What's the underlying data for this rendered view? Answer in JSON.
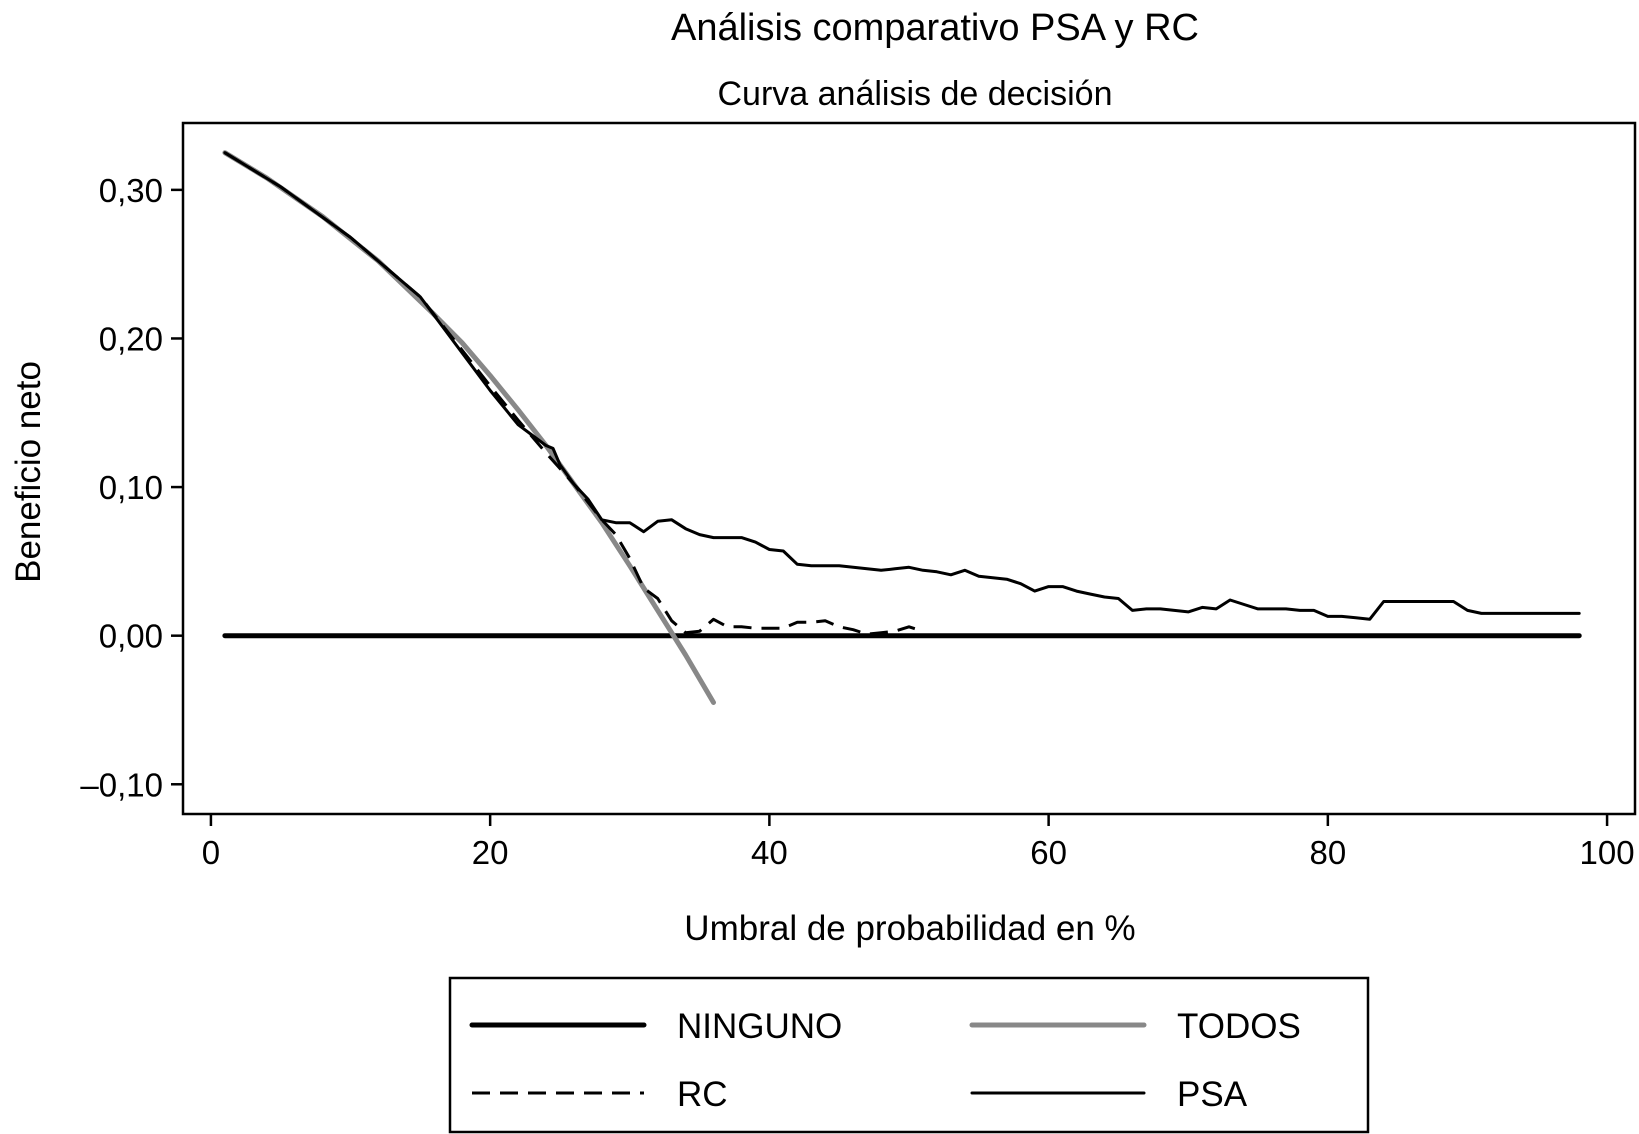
{
  "chart_data": {
    "type": "line",
    "title": "Análisis comparativo PSA y RC",
    "subtitle": "Curva análisis de decisión",
    "xlabel": "Umbral de probabilidad en %",
    "ylabel": "Beneficio neto",
    "xlim": [
      -2,
      102
    ],
    "ylim": [
      -0.12,
      0.345
    ],
    "x_ticks": [
      0,
      20,
      40,
      60,
      80,
      100
    ],
    "x_tick_labels": [
      "0",
      "20",
      "40",
      "60",
      "80",
      "100"
    ],
    "y_ticks": [
      -0.1,
      0.0,
      0.1,
      0.2,
      0.3
    ],
    "y_tick_labels": [
      "–0,10",
      "0,00",
      "0,10",
      "0,20",
      "0,30"
    ],
    "grid": false,
    "legend_position": "bottom",
    "series": [
      {
        "name": "NINGUNO",
        "style": "solid",
        "color": "#000000",
        "width": "thick",
        "points": [
          [
            1,
            0.0
          ],
          [
            98,
            0.0
          ]
        ]
      },
      {
        "name": "TODOS",
        "style": "solid",
        "color": "#888888",
        "width": "thick",
        "points": [
          [
            1,
            0.325
          ],
          [
            4,
            0.308
          ],
          [
            8,
            0.282
          ],
          [
            12,
            0.252
          ],
          [
            16,
            0.216
          ],
          [
            18,
            0.197
          ],
          [
            20,
            0.175
          ],
          [
            22,
            0.152
          ],
          [
            24,
            0.128
          ],
          [
            26,
            0.102
          ],
          [
            28,
            0.076
          ],
          [
            30,
            0.047
          ],
          [
            32,
            0.017
          ],
          [
            34,
            -0.013
          ],
          [
            36,
            -0.045
          ]
        ]
      },
      {
        "name": "RC",
        "style": "dashed",
        "color": "#000000",
        "width": "normal",
        "points": [
          [
            1,
            0.325
          ],
          [
            5,
            0.302
          ],
          [
            10,
            0.268
          ],
          [
            15,
            0.228
          ],
          [
            20,
            0.168
          ],
          [
            22,
            0.145
          ],
          [
            24,
            0.123
          ],
          [
            26,
            0.102
          ],
          [
            28,
            0.078
          ],
          [
            29,
            0.068
          ],
          [
            30,
            0.052
          ],
          [
            31,
            0.032
          ],
          [
            32,
            0.025
          ],
          [
            33,
            0.01
          ],
          [
            34,
            0.002
          ],
          [
            35,
            0.003
          ],
          [
            36,
            0.011
          ],
          [
            37,
            0.006
          ],
          [
            38,
            0.006
          ],
          [
            39,
            0.005
          ],
          [
            40,
            0.005
          ],
          [
            41,
            0.005
          ],
          [
            42,
            0.009
          ],
          [
            43,
            0.009
          ],
          [
            44,
            0.01
          ],
          [
            45,
            0.006
          ],
          [
            46,
            0.004
          ],
          [
            47,
            0.001
          ],
          [
            48,
            0.002
          ],
          [
            49,
            0.003
          ],
          [
            50,
            0.006
          ],
          [
            51,
            0.003
          ]
        ]
      },
      {
        "name": "PSA",
        "style": "solid",
        "color": "#000000",
        "width": "normal",
        "points": [
          [
            1,
            0.325
          ],
          [
            5,
            0.302
          ],
          [
            10,
            0.268
          ],
          [
            15,
            0.228
          ],
          [
            20,
            0.165
          ],
          [
            22,
            0.142
          ],
          [
            24,
            0.128
          ],
          [
            24.5,
            0.126
          ],
          [
            25,
            0.115
          ],
          [
            26,
            0.102
          ],
          [
            27,
            0.092
          ],
          [
            28,
            0.078
          ],
          [
            29,
            0.076
          ],
          [
            30,
            0.076
          ],
          [
            31,
            0.07
          ],
          [
            32,
            0.077
          ],
          [
            33,
            0.078
          ],
          [
            34,
            0.072
          ],
          [
            35,
            0.068
          ],
          [
            36,
            0.066
          ],
          [
            37,
            0.066
          ],
          [
            38,
            0.066
          ],
          [
            39,
            0.063
          ],
          [
            40,
            0.058
          ],
          [
            41,
            0.057
          ],
          [
            42,
            0.048
          ],
          [
            43,
            0.047
          ],
          [
            44,
            0.047
          ],
          [
            45,
            0.047
          ],
          [
            46,
            0.046
          ],
          [
            47,
            0.045
          ],
          [
            48,
            0.044
          ],
          [
            49,
            0.045
          ],
          [
            50,
            0.046
          ],
          [
            51,
            0.044
          ],
          [
            52,
            0.043
          ],
          [
            53,
            0.041
          ],
          [
            54,
            0.044
          ],
          [
            55,
            0.04
          ],
          [
            56,
            0.039
          ],
          [
            57,
            0.038
          ],
          [
            58,
            0.035
          ],
          [
            59,
            0.03
          ],
          [
            60,
            0.033
          ],
          [
            61,
            0.033
          ],
          [
            62,
            0.03
          ],
          [
            63,
            0.028
          ],
          [
            64,
            0.026
          ],
          [
            65,
            0.025
          ],
          [
            66,
            0.017
          ],
          [
            67,
            0.018
          ],
          [
            68,
            0.018
          ],
          [
            69,
            0.017
          ],
          [
            70,
            0.016
          ],
          [
            71,
            0.019
          ],
          [
            72,
            0.018
          ],
          [
            73,
            0.024
          ],
          [
            74,
            0.021
          ],
          [
            75,
            0.018
          ],
          [
            76,
            0.018
          ],
          [
            77,
            0.018
          ],
          [
            78,
            0.017
          ],
          [
            79,
            0.017
          ],
          [
            80,
            0.013
          ],
          [
            81,
            0.013
          ],
          [
            82,
            0.012
          ],
          [
            83,
            0.011
          ],
          [
            84,
            0.023
          ],
          [
            85,
            0.023
          ],
          [
            86,
            0.023
          ],
          [
            87,
            0.023
          ],
          [
            88,
            0.023
          ],
          [
            89,
            0.023
          ],
          [
            90,
            0.017
          ],
          [
            91,
            0.015
          ],
          [
            92,
            0.015
          ],
          [
            93,
            0.015
          ],
          [
            94,
            0.015
          ],
          [
            95,
            0.015
          ],
          [
            96,
            0.015
          ],
          [
            97,
            0.015
          ],
          [
            98,
            0.015
          ]
        ]
      }
    ]
  }
}
